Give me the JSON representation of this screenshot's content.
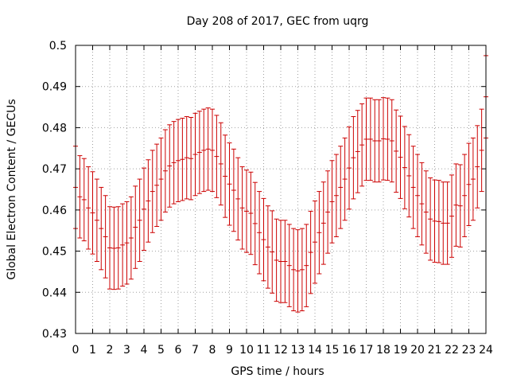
{
  "chart_data": {
    "type": "errorbar",
    "title": "Day 208 of 2017, GEC from uqrg",
    "xlabel": "GPS time / hours",
    "ylabel": "Global Electron Content / GECUs",
    "xlim": [
      0,
      24
    ],
    "ylim": [
      0.43,
      0.5
    ],
    "xticks": [
      "0",
      "1",
      "2",
      "3",
      "4",
      "5",
      "6",
      "7",
      "8",
      "9",
      "10",
      "11",
      "12",
      "13",
      "14",
      "15",
      "16",
      "17",
      "18",
      "19",
      "20",
      "21",
      "22",
      "23",
      "24"
    ],
    "yticks": [
      "0.43",
      "0.44",
      "0.45",
      "0.46",
      "0.47",
      "0.48",
      "0.49",
      "0.5"
    ],
    "grid": true,
    "error": 0.01,
    "color": "#cc0000",
    "series": [
      {
        "x": [
          0.0,
          0.25,
          0.5,
          0.75,
          1.0,
          1.25,
          1.5,
          1.75,
          2.0,
          2.25,
          2.5,
          2.75,
          3.0,
          3.25,
          3.5,
          3.75,
          4.0,
          4.25,
          4.5,
          4.75,
          5.0,
          5.25,
          5.5,
          5.75,
          6.0,
          6.25,
          6.5,
          6.75,
          7.0,
          7.25,
          7.5,
          7.75,
          8.0,
          8.25,
          8.5,
          8.75,
          9.0,
          9.25,
          9.5,
          9.75,
          10.0,
          10.25,
          10.5,
          10.75,
          11.0,
          11.25,
          11.5,
          11.75,
          12.0,
          12.25,
          12.5,
          12.75,
          13.0,
          13.25,
          13.5,
          13.75,
          14.0,
          14.25,
          14.5,
          14.75,
          15.0,
          15.25,
          15.5,
          15.75,
          16.0,
          16.25,
          16.5,
          16.75,
          17.0,
          17.25,
          17.5,
          17.75,
          18.0,
          18.25,
          18.5,
          18.75,
          19.0,
          19.25,
          19.5,
          19.75,
          20.0,
          20.25,
          20.5,
          20.75,
          21.0,
          21.25,
          21.5,
          21.75,
          22.0,
          22.25,
          22.5,
          22.75,
          23.0,
          23.25,
          23.5,
          23.75,
          24.0
        ],
        "y": [
          0.4655,
          0.4632,
          0.4625,
          0.4605,
          0.4593,
          0.4575,
          0.4555,
          0.4535,
          0.4508,
          0.4507,
          0.4508,
          0.4515,
          0.452,
          0.4532,
          0.4558,
          0.4575,
          0.4602,
          0.4622,
          0.4645,
          0.466,
          0.4675,
          0.4695,
          0.4707,
          0.4715,
          0.472,
          0.4723,
          0.4727,
          0.4725,
          0.4735,
          0.474,
          0.4745,
          0.4748,
          0.4745,
          0.473,
          0.4712,
          0.4682,
          0.4663,
          0.4648,
          0.4627,
          0.4605,
          0.4597,
          0.4592,
          0.4567,
          0.4545,
          0.4528,
          0.451,
          0.4498,
          0.4478,
          0.4475,
          0.4475,
          0.4465,
          0.4455,
          0.4452,
          0.4455,
          0.4465,
          0.4497,
          0.4522,
          0.4545,
          0.4568,
          0.4595,
          0.462,
          0.4635,
          0.4655,
          0.4675,
          0.4702,
          0.4727,
          0.4742,
          0.4758,
          0.4772,
          0.4772,
          0.4768,
          0.4768,
          0.4773,
          0.4772,
          0.4768,
          0.4743,
          0.4728,
          0.4703,
          0.4683,
          0.4655,
          0.4635,
          0.4615,
          0.4595,
          0.4578,
          0.4573,
          0.4572,
          0.4568,
          0.4568,
          0.4585,
          0.4612,
          0.461,
          0.4635,
          0.4662,
          0.4675,
          0.4705,
          0.4745,
          0.4875
        ]
      }
    ]
  }
}
